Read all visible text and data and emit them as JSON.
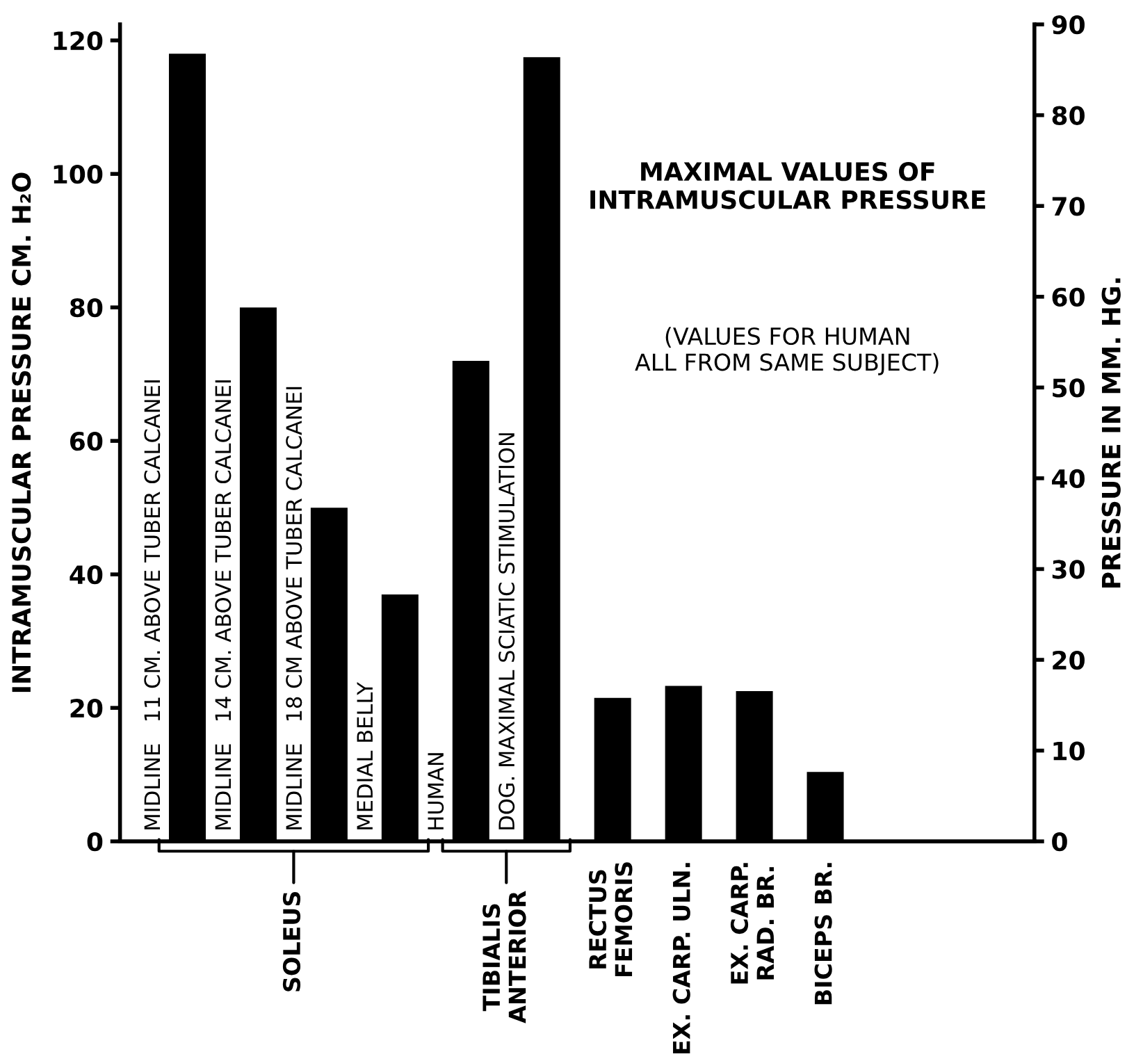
{
  "chart_data": {
    "type": "bar",
    "title": "MAXIMAL VALUES OF\nINTRAMUSCULAR PRESSURE",
    "subtitle": "(VALUES FOR HUMAN\nALL FROM SAME SUBJECT)",
    "ylabel": "INTRAMUSCULAR PRESSURE CM. H₂O",
    "y2label": "PRESSURE IN MM. HG.",
    "categories": [
      "MIDLINE   11 CM. ABOVE TUBER CALCANEI",
      "MIDLINE   14 CM. ABOVE TUBER CALCANEI",
      "MIDLINE   18 CM ABOVE TUBER CALCANEI",
      "MEDIAL BELLY",
      "HUMAN",
      "DOG. MAXIMAL SCIATIC STIMULATION",
      "RECTUS\nFEMORIS",
      "EX. CARP. ULN.",
      "EX. CARP.\nRAD. BR.",
      "BICEPS BR.",
      null,
      null
    ],
    "values": [
      118,
      80,
      50,
      37,
      72,
      117.5,
      21.5,
      23.3,
      22.5,
      10.4,
      null,
      null
    ],
    "color": "#000000",
    "annotations": [
      "SOLEUS",
      "TIBIALIS\nANTERIOR"
    ],
    "ylim": [
      0,
      122.4
    ],
    "yticks": [
      0,
      20,
      40,
      60,
      80,
      100,
      120
    ],
    "y2lim": [
      0,
      90
    ],
    "y2ticks": [
      0,
      10,
      20,
      30,
      40,
      50,
      60,
      70,
      80,
      90
    ],
    "grid": false,
    "legend": false
  }
}
